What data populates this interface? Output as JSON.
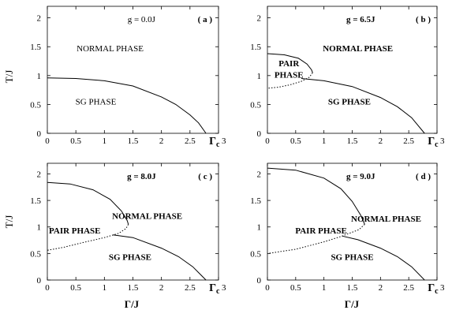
{
  "figure": {
    "y_axis_label": "T/J",
    "x_axis_label": "Γ/J",
    "gamma_c_label": "Γ",
    "gamma_c_sub": "c"
  },
  "chart_data": [
    {
      "type": "line",
      "panel_label": "( a )",
      "annotation": "g = 0.0J",
      "annotation_bold": false,
      "xlim": [
        0,
        3
      ],
      "ylim": [
        0,
        2.2
      ],
      "xticks": [
        "0",
        "0.5",
        "1",
        "1.5",
        "2",
        "2.5",
        "3"
      ],
      "yticks": [
        "0",
        "0.5",
        "1",
        "1.5",
        "2"
      ],
      "xlabel": "",
      "ylabel": "T/J",
      "gamma_c": 2.78,
      "regions": [
        {
          "label": "NORMAL PHASE",
          "x": 1.1,
          "y": 1.42
        },
        {
          "label": "SG PHASE",
          "x": 0.85,
          "y": 0.5
        }
      ],
      "series": [
        {
          "style": "solid",
          "x": [
            0,
            0.5,
            1.0,
            1.5,
            2.0,
            2.25,
            2.5,
            2.65,
            2.78
          ],
          "y": [
            0.96,
            0.95,
            0.91,
            0.82,
            0.63,
            0.5,
            0.32,
            0.18,
            0.0
          ]
        }
      ]
    },
    {
      "type": "line",
      "panel_label": "( b )",
      "annotation": "g = 6.5J",
      "annotation_bold": true,
      "xlim": [
        0,
        3
      ],
      "ylim": [
        0,
        2.2
      ],
      "xticks": [
        "0",
        "0.5",
        "1",
        "1.5",
        "2",
        "2.5",
        "3"
      ],
      "yticks": [
        "0",
        "0.5",
        "1",
        "1.5",
        "2"
      ],
      "xlabel": "",
      "ylabel": "",
      "gamma_c": 2.78,
      "regions": [
        {
          "label": "NORMAL PHASE",
          "x": 1.6,
          "y": 1.42
        },
        {
          "label": "PAIR",
          "x": 0.38,
          "y": 1.16
        },
        {
          "label": "PHASE",
          "x": 0.38,
          "y": 0.96
        },
        {
          "label": "SG PHASE",
          "x": 1.45,
          "y": 0.5
        }
      ],
      "series": [
        {
          "style": "solid",
          "x": [
            0,
            0.3,
            0.55,
            0.7,
            0.78,
            0.8
          ],
          "y": [
            1.38,
            1.36,
            1.3,
            1.2,
            1.1,
            1.05
          ]
        },
        {
          "style": "dotted",
          "x": [
            0.8,
            0.74,
            0.6,
            0.4,
            0.2,
            0
          ],
          "y": [
            1.05,
            0.97,
            0.9,
            0.84,
            0.8,
            0.78
          ]
        },
        {
          "style": "solid",
          "x": [
            0.6,
            1.0,
            1.5,
            2.0,
            2.3,
            2.55,
            2.78
          ],
          "y": [
            0.95,
            0.91,
            0.81,
            0.62,
            0.46,
            0.27,
            0.0
          ]
        }
      ]
    },
    {
      "type": "line",
      "panel_label": "( c )",
      "annotation": "g = 8.0J",
      "annotation_bold": true,
      "xlim": [
        0,
        3
      ],
      "ylim": [
        0,
        2.2
      ],
      "xticks": [
        "0",
        "0.5",
        "1",
        "1.5",
        "2",
        "2.5",
        "3"
      ],
      "yticks": [
        "0",
        "0.5",
        "1",
        "1.5",
        "2"
      ],
      "xlabel": "Γ/J",
      "ylabel": "T/J",
      "gamma_c": 2.78,
      "regions": [
        {
          "label": "NORMAL PHASE",
          "x": 1.75,
          "y": 1.15
        },
        {
          "label": "PAIR PHASE",
          "x": 0.48,
          "y": 0.88
        },
        {
          "label": "SG PHASE",
          "x": 1.45,
          "y": 0.38
        }
      ],
      "series": [
        {
          "style": "solid",
          "x": [
            0,
            0.4,
            0.8,
            1.1,
            1.3,
            1.4,
            1.42
          ],
          "y": [
            1.84,
            1.81,
            1.7,
            1.52,
            1.3,
            1.12,
            1.05
          ]
        },
        {
          "style": "dotted",
          "x": [
            1.42,
            1.38,
            1.25,
            1.0,
            0.6,
            0.3,
            0
          ],
          "y": [
            1.05,
            0.97,
            0.88,
            0.8,
            0.7,
            0.62,
            0.56
          ]
        },
        {
          "style": "solid",
          "x": [
            1.15,
            1.5,
            2.0,
            2.3,
            2.55,
            2.78
          ],
          "y": [
            0.85,
            0.8,
            0.6,
            0.44,
            0.25,
            0.0
          ]
        }
      ]
    },
    {
      "type": "line",
      "panel_label": "( d )",
      "annotation": "g = 9.0J",
      "annotation_bold": true,
      "xlim": [
        0,
        3
      ],
      "ylim": [
        0,
        2.2
      ],
      "xticks": [
        "0",
        "0.5",
        "1",
        "1.5",
        "2",
        "2.5",
        "3"
      ],
      "yticks": [
        "0",
        "0.5",
        "1",
        "1.5",
        "2"
      ],
      "xlabel": "Γ/J",
      "ylabel": "",
      "gamma_c": 2.78,
      "regions": [
        {
          "label": "NORMAL PHASE",
          "x": 2.1,
          "y": 1.1
        },
        {
          "label": "PAIR PHASE",
          "x": 0.95,
          "y": 0.88
        },
        {
          "label": "SG PHASE",
          "x": 1.5,
          "y": 0.38
        }
      ],
      "series": [
        {
          "style": "solid",
          "x": [
            0,
            0.5,
            1.0,
            1.3,
            1.5,
            1.65,
            1.72
          ],
          "y": [
            2.11,
            2.07,
            1.92,
            1.72,
            1.48,
            1.22,
            1.05
          ]
        },
        {
          "style": "dotted",
          "x": [
            1.72,
            1.62,
            1.3,
            1.0,
            0.5,
            0
          ],
          "y": [
            1.05,
            0.95,
            0.82,
            0.72,
            0.58,
            0.5
          ]
        },
        {
          "style": "solid",
          "x": [
            1.32,
            1.6,
            2.0,
            2.3,
            2.55,
            2.78
          ],
          "y": [
            0.83,
            0.76,
            0.6,
            0.44,
            0.25,
            0.0
          ]
        }
      ]
    }
  ]
}
